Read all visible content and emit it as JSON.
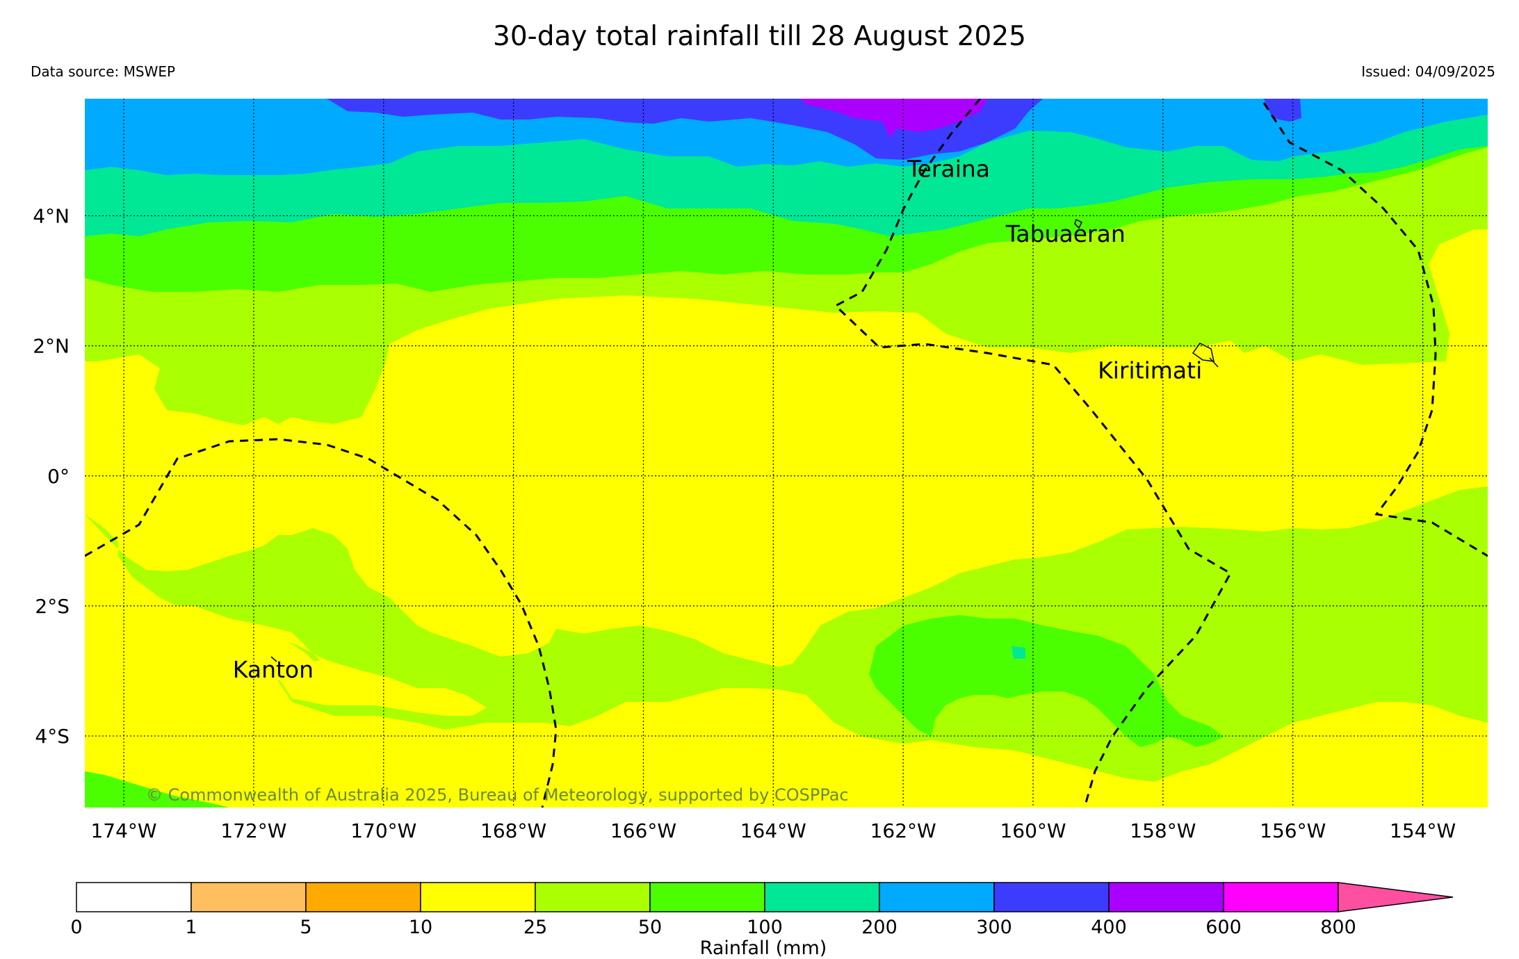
{
  "header": {
    "title": "30-day total rainfall till 28 August 2025",
    "source": "Data source: MSWEP",
    "issued": "Issued: 04/09/2025"
  },
  "map": {
    "lon_range": [
      -174.6,
      -153.0
    ],
    "lat_range": [
      -5.1,
      5.8
    ],
    "lon_ticks": [
      {
        "value": -174,
        "label": "174°W"
      },
      {
        "value": -172,
        "label": "172°W"
      },
      {
        "value": -170,
        "label": "170°W"
      },
      {
        "value": -168,
        "label": "168°W"
      },
      {
        "value": -166,
        "label": "166°W"
      },
      {
        "value": -164,
        "label": "164°W"
      },
      {
        "value": -162,
        "label": "162°W"
      },
      {
        "value": -160,
        "label": "160°W"
      },
      {
        "value": -158,
        "label": "158°W"
      },
      {
        "value": -156,
        "label": "156°W"
      },
      {
        "value": -154,
        "label": "154°W"
      }
    ],
    "lat_ticks": [
      {
        "value": 4,
        "label": "4°N"
      },
      {
        "value": 2,
        "label": "2°N"
      },
      {
        "value": 0,
        "label": "0°"
      },
      {
        "value": -2,
        "label": "2°S"
      },
      {
        "value": -4,
        "label": "4°S"
      }
    ],
    "places": [
      {
        "name": "Teraina",
        "lon": -161.3,
        "lat": 4.6
      },
      {
        "name": "Tabuaeran",
        "lon": -159.5,
        "lat": 3.6
      },
      {
        "name": "Kiritimati",
        "lon": -158.2,
        "lat": 1.5
      },
      {
        "name": "Kanton",
        "lon": -171.7,
        "lat": -3.1
      }
    ],
    "copyright": "© Commonwealth of Australia 2025, Bureau of Meteorology, supported by COSPPac"
  },
  "legend": {
    "title": "Rainfall (mm)",
    "bounds": [
      "0",
      "1",
      "5",
      "10",
      "25",
      "50",
      "100",
      "200",
      "300",
      "400",
      "600",
      "800"
    ],
    "colors": [
      "#ffffff",
      "#ffbf5f",
      "#ffaa00",
      "#ffff00",
      "#aaff00",
      "#4bff00",
      "#00e796",
      "#00aaff",
      "#3c3cff",
      "#aa00ff",
      "#ff00ff"
    ],
    "extend_color": "#ff4fa0"
  }
}
